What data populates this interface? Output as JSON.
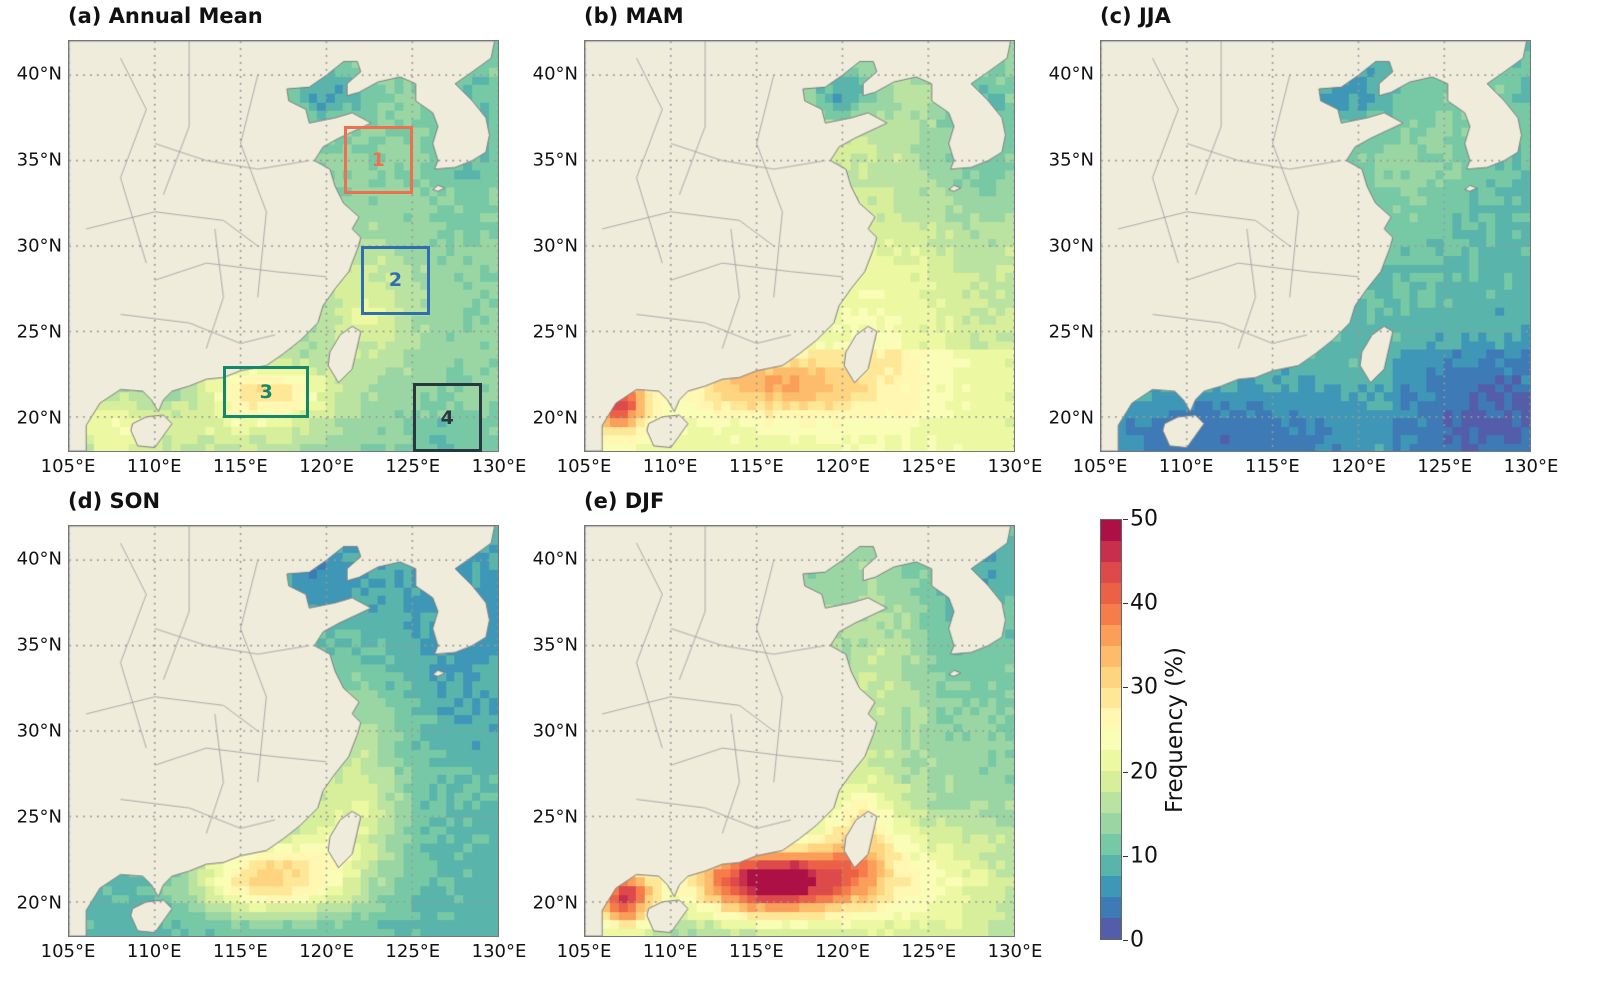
{
  "panels": [
    {
      "id": "a",
      "title": "(a) Annual Mean",
      "season": "annual"
    },
    {
      "id": "b",
      "title": "(b) MAM",
      "season": "MAM"
    },
    {
      "id": "c",
      "title": "(c) JJA",
      "season": "JJA"
    },
    {
      "id": "d",
      "title": "(d) SON",
      "season": "SON"
    },
    {
      "id": "e",
      "title": "(e) DJF",
      "season": "DJF"
    }
  ],
  "axes": {
    "lon_range": [
      105,
      130
    ],
    "lat_range": [
      18,
      42
    ],
    "x_ticks": [
      105,
      110,
      115,
      120,
      125,
      130
    ],
    "x_tick_labels": [
      "105°E",
      "110°E",
      "115°E",
      "120°E",
      "125°E",
      "130°E"
    ],
    "y_ticks": [
      40,
      35,
      30,
      25,
      20
    ],
    "y_tick_labels": [
      "40°N",
      "35°N",
      "30°N",
      "25°N",
      "20°N"
    ]
  },
  "regions": [
    {
      "label": "1",
      "lon": [
        121,
        125
      ],
      "lat": [
        33,
        37
      ],
      "color": "#ef6f4f"
    },
    {
      "label": "2",
      "lon": [
        122,
        126
      ],
      "lat": [
        26,
        30
      ],
      "color": "#2f6fae"
    },
    {
      "label": "3",
      "lon": [
        114,
        119
      ],
      "lat": [
        20,
        23
      ],
      "color": "#15876a"
    },
    {
      "label": "4",
      "lon": [
        125,
        129
      ],
      "lat": [
        18,
        22
      ],
      "color": "#28383f"
    }
  ],
  "colorbar": {
    "label": "Frequency (%)",
    "range": [
      0,
      50
    ],
    "levels": 20,
    "ticks": [
      0,
      10,
      20,
      30,
      40,
      50
    ],
    "tick_labels": [
      "0",
      "10",
      "20",
      "30",
      "40",
      "50"
    ],
    "colors": [
      "#5e4fa2",
      "#3288bd",
      "#66c2a5",
      "#abdda4",
      "#e6f598",
      "#ffffbf",
      "#fee08b",
      "#fdae61",
      "#f46d43",
      "#d53e4f",
      "#9e0142"
    ]
  },
  "land_color": "#efecdc",
  "border_color": "#808080"
}
